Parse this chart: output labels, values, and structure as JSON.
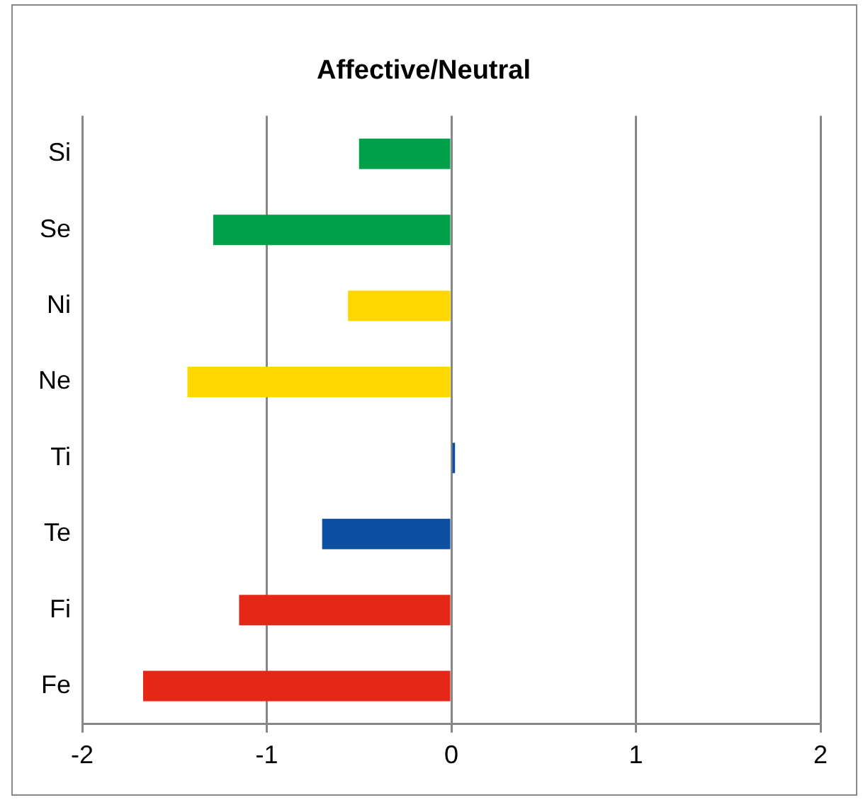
{
  "chart_data": {
    "type": "bar",
    "title": "Affective/Neutral",
    "orientation": "horizontal",
    "categories": [
      "Si",
      "Se",
      "Ni",
      "Ne",
      "Ti",
      "Te",
      "Fi",
      "Fe"
    ],
    "values": [
      -0.5,
      -1.29,
      -0.56,
      -1.43,
      0.02,
      -0.7,
      -1.15,
      -1.67
    ],
    "colors": [
      "#00a04a",
      "#00a04a",
      "#ffd700",
      "#ffd700",
      "#0b4ea2",
      "#0b4ea2",
      "#e52718",
      "#e52718"
    ],
    "xlim": [
      -2,
      2
    ],
    "xticks": [
      -2,
      -1,
      0,
      1,
      2
    ],
    "grid": "x",
    "legend": false
  }
}
